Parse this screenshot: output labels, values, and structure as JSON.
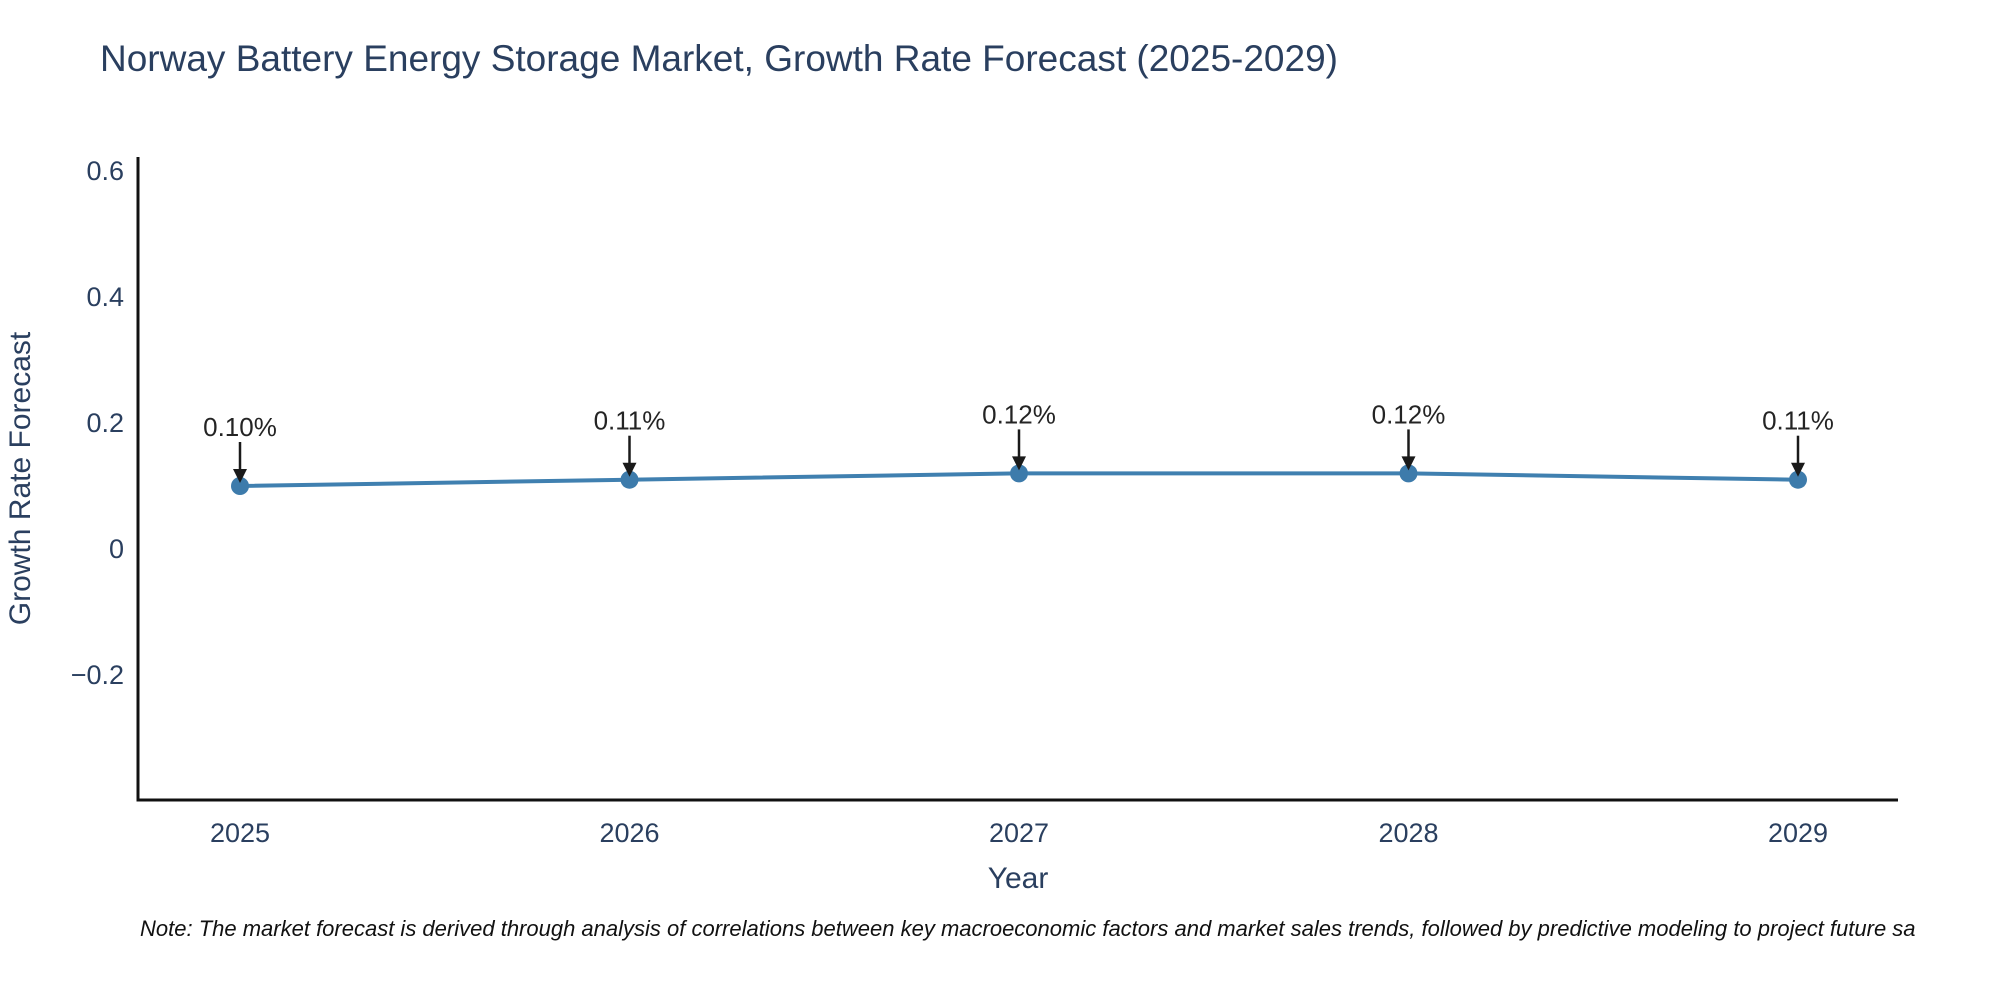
{
  "chart_data": {
    "type": "line",
    "title": "Norway Battery Energy Storage Market, Growth Rate Forecast (2025-2029)",
    "xlabel": "Year",
    "ylabel": "Growth Rate Forecast",
    "x": [
      2025,
      2026,
      2027,
      2028,
      2029
    ],
    "values": [
      0.1,
      0.11,
      0.12,
      0.12,
      0.11
    ],
    "point_labels": [
      "0.10%",
      "0.11%",
      "0.12%",
      "0.12%",
      "0.11%"
    ],
    "y_ticks": [
      0.6,
      0.4,
      0.2,
      0,
      -0.2
    ],
    "ylim": [
      -0.4,
      0.62
    ],
    "grid": false,
    "legend": "none",
    "line_color": "#4080b0",
    "marker_color": "#3d7bab",
    "axis_color": "#111111",
    "text_color": "#2a3f5f",
    "annotation_text_color": "#242424",
    "annotation_arrow_color": "#1a1a1a",
    "note": "Note: The market forecast is derived through analysis of correlations between key macroeconomic factors and market sales trends, followed by predictive modeling to project future sa"
  }
}
